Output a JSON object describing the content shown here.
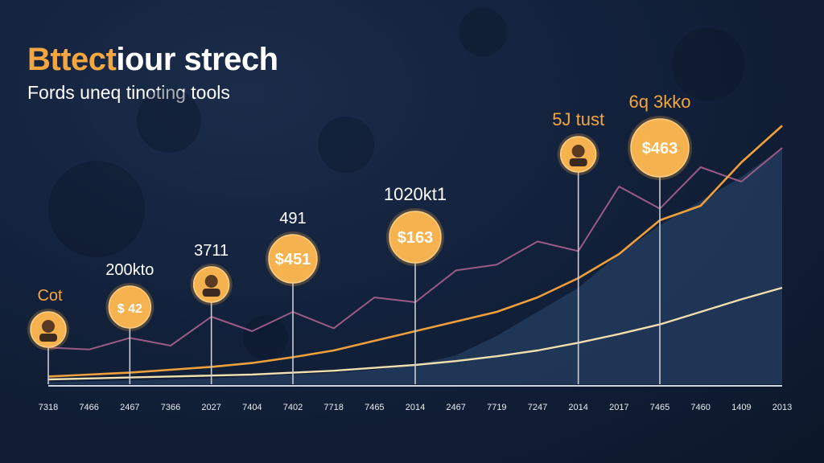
{
  "title_accent": "Bttect",
  "title_rest": "iour strech",
  "subtitle": "Fords uneq tinoting tools",
  "colors": {
    "background": "#0f1c33",
    "accent": "#f4a640",
    "purple_line": "#9a5a86",
    "orange_line": "#f0a03a",
    "cream_line": "#f1dfae",
    "area_fill": "#22395a",
    "marker_line": "#c8ccd4"
  },
  "chart_data": {
    "type": "line",
    "x_tick_labels": [
      "7318",
      "7466",
      "2467",
      "7366",
      "2027",
      "7404",
      "7402",
      "7718",
      "7465",
      "2014",
      "2467",
      "7719",
      "7247",
      "2014",
      "2017",
      "7465",
      "7460",
      "1409",
      "2013"
    ],
    "series": [
      {
        "values": [
          38,
          36,
          48,
          40,
          70,
          55,
          75,
          58,
          90,
          85,
          118,
          124,
          148,
          138,
          205,
          182,
          225,
          210,
          245
        ]
      },
      {
        "values": [
          8,
          10,
          12,
          15,
          18,
          22,
          28,
          35,
          45,
          55,
          65,
          75,
          90,
          110,
          135,
          170,
          185,
          230,
          268
        ]
      },
      {
        "values": [
          5,
          6,
          7,
          8,
          9,
          10,
          12,
          14,
          17,
          20,
          24,
          29,
          35,
          43,
          52,
          62,
          75,
          88,
          100
        ]
      }
    ],
    "area_values": [
      2,
      3,
      4,
      5,
      6,
      8,
      10,
      12,
      15,
      20,
      30,
      50,
      75,
      100,
      135,
      165,
      190,
      215,
      245
    ],
    "annotations": [
      {
        "label": "Cot",
        "coin": "avatar",
        "index": 0
      },
      {
        "label": "200kto",
        "coin": "$ 42",
        "index": 2
      },
      {
        "label": "3711",
        "coin": "avatar",
        "index": 4
      },
      {
        "label": "491",
        "coin": "$451",
        "index": 6
      },
      {
        "label": "1020kt1",
        "coin": "$163",
        "index": 9
      },
      {
        "label": "5J tust",
        "coin": "avatar",
        "index": 13
      },
      {
        "label": "6q 3kko",
        "coin": "$463",
        "index": 15
      }
    ]
  }
}
